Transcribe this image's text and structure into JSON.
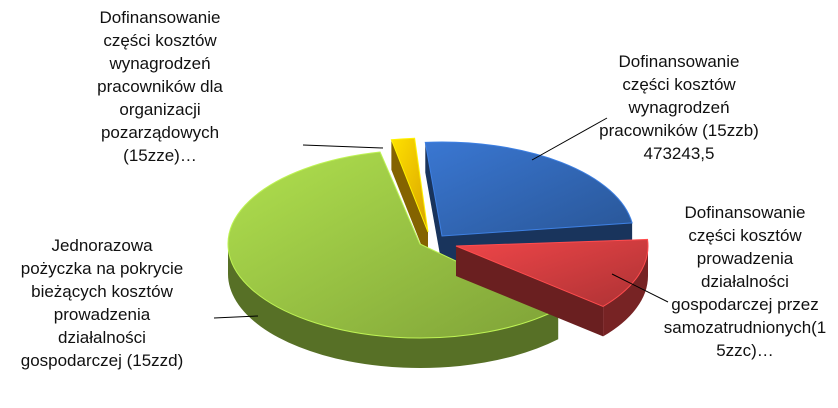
{
  "chart_data": {
    "type": "pie",
    "title": "",
    "style": "3d-exploded",
    "slices": [
      {
        "label_lines": [
          "Dofinansowanie",
          "części kosztów",
          "wynagrodzeń",
          "pracowników (15zzb)",
          "473243,5"
        ],
        "value": 473243.5,
        "color": "#2E5FA8"
      },
      {
        "label_lines": [
          "Dofinansowanie",
          "części kosztów",
          "prowadzenia",
          "działalności",
          "gospodarczej przez",
          "samozatrudnionych(1",
          "5zzc)…"
        ],
        "value": null,
        "color": "#C0383A"
      },
      {
        "label_lines": [
          "Jednorazowa",
          "pożyczka na pokrycie",
          "bieżących kosztów",
          "prowadzenia",
          "działalności",
          "gospodarczej (15zzd)"
        ],
        "value": null,
        "color": "#8DB43E"
      },
      {
        "label_lines": [
          "Dofinansowanie",
          "części kosztów",
          "wynagrodzeń",
          "pracowników dla",
          "organizacji",
          "pozarządowych",
          "(15zze)…"
        ],
        "value": null,
        "color": "#F0B400"
      }
    ]
  }
}
